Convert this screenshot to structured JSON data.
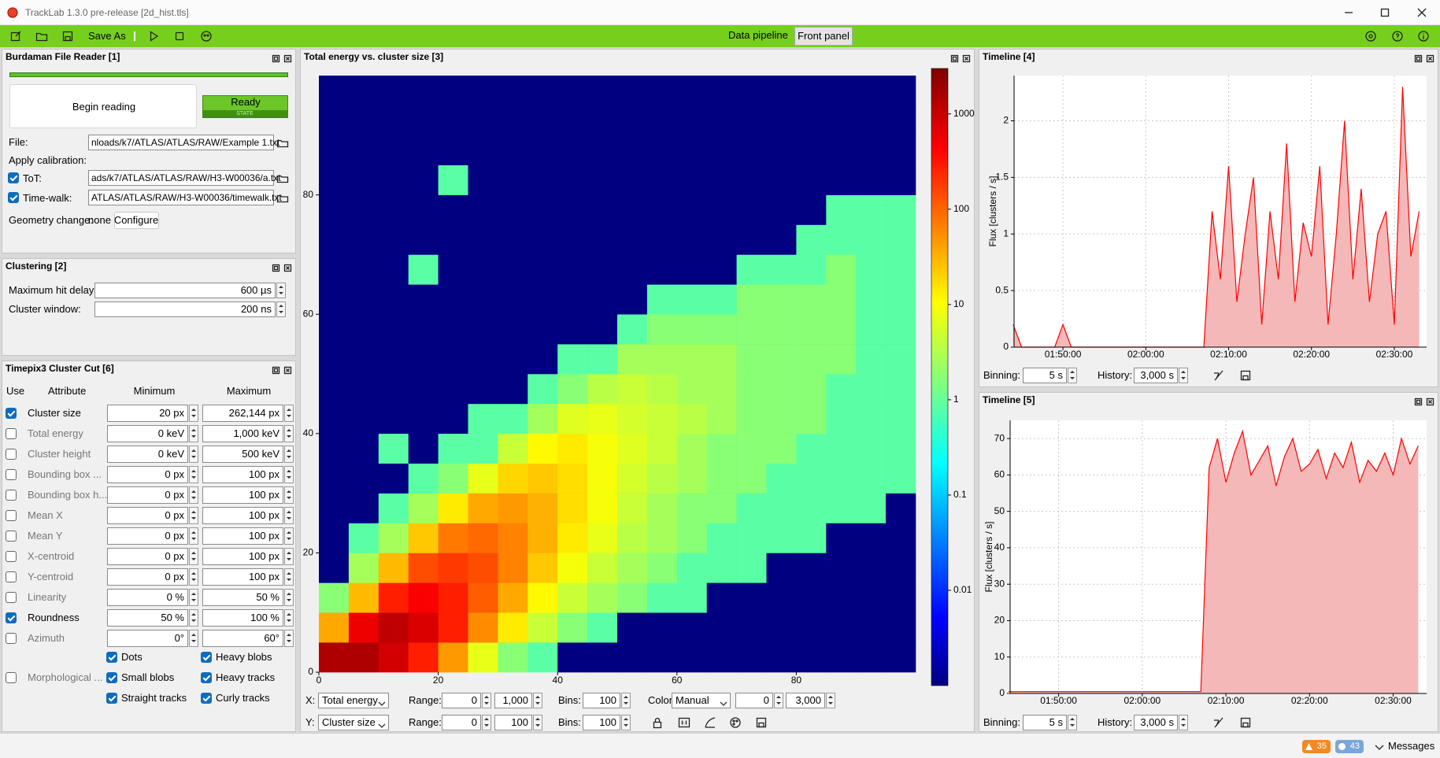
{
  "window": {
    "title": "TrackLab 1.3.0 pre-release [2d_hist.tls]"
  },
  "toolbar": {
    "save_as": "Save As",
    "tabs": [
      "Data pipeline",
      "Front panel"
    ],
    "active_tab": 1
  },
  "file_reader": {
    "title": "Burdaman File Reader [1]",
    "button": "Begin reading",
    "state": "Ready",
    "state_caption": "STATE",
    "file_label": "File:",
    "file_value": "nloads/k7/ATLAS/ATLAS/RAW/Example 1.txt",
    "apply_calibration": "Apply calibration:",
    "tot_label": "ToT:",
    "tot_checked": true,
    "tot_value": "ads/k7/ATLAS/ATLAS/RAW/H3-W00036/a.txt",
    "timewalk_label": "Time-walk:",
    "timewalk_checked": true,
    "timewalk_value": "ATLAS/ATLAS/RAW/H3-W00036/timewalk.txt",
    "geometry_label": "Geometry change:",
    "geometry_value": "none",
    "configure": "Configure"
  },
  "clustering": {
    "title": "Clustering [2]",
    "rows": [
      {
        "label": "Maximum hit delay:",
        "value": "600 µs"
      },
      {
        "label": "Cluster window:",
        "value": "200 ns"
      }
    ]
  },
  "cluster_cut": {
    "title": "Timepix3 Cluster Cut [6]",
    "headers": [
      "Use",
      "Attribute",
      "Minimum",
      "Maximum"
    ],
    "rows": [
      {
        "checked": true,
        "attribute": "Cluster size",
        "min": "20 px",
        "max": "262,144 px"
      },
      {
        "checked": false,
        "attribute": "Total energy",
        "min": "0 keV",
        "max": "1,000 keV"
      },
      {
        "checked": false,
        "attribute": "Cluster height",
        "min": "0 keV",
        "max": "500 keV"
      },
      {
        "checked": false,
        "attribute": "Bounding box ...",
        "min": "0 px",
        "max": "100 px"
      },
      {
        "checked": false,
        "attribute": "Bounding box h...",
        "min": "0 px",
        "max": "100 px"
      },
      {
        "checked": false,
        "attribute": "Mean X",
        "min": "0 px",
        "max": "100 px"
      },
      {
        "checked": false,
        "attribute": "Mean Y",
        "min": "0 px",
        "max": "100 px"
      },
      {
        "checked": false,
        "attribute": "X-centroid",
        "min": "0 px",
        "max": "100 px"
      },
      {
        "checked": false,
        "attribute": "Y-centroid",
        "min": "0 px",
        "max": "100 px"
      },
      {
        "checked": false,
        "attribute": "Linearity",
        "min": "0 %",
        "max": "50 %"
      },
      {
        "checked": true,
        "attribute": "Roundness",
        "min": "50 %",
        "max": "100 %"
      },
      {
        "checked": false,
        "attribute": "Azimuth",
        "min": "0°",
        "max": "60°"
      }
    ],
    "morphological": {
      "checked": false,
      "attribute": "Morphological ...",
      "options": [
        {
          "label": "Dots",
          "checked": true
        },
        {
          "label": "Heavy blobs",
          "checked": true
        },
        {
          "label": "Small blobs",
          "checked": true
        },
        {
          "label": "Heavy tracks",
          "checked": true
        },
        {
          "label": "Straight tracks",
          "checked": true
        },
        {
          "label": "Curly tracks",
          "checked": true
        }
      ]
    }
  },
  "chart_data": [
    {
      "type": "heatmap",
      "title": "Total energy vs. cluster size [3]",
      "x_bins": [
        0,
        5,
        10,
        15,
        20,
        25,
        30,
        35,
        40,
        45,
        50,
        55,
        60,
        65,
        70,
        75,
        80,
        85,
        90,
        95,
        100
      ],
      "y_bins": [
        0,
        5,
        10,
        15,
        20,
        25,
        30,
        35,
        40,
        45,
        50,
        55,
        60,
        65,
        70,
        75,
        80,
        85,
        90,
        95,
        100
      ],
      "z": [
        [
          1500,
          1500,
          900,
          300,
          50,
          8,
          2,
          1,
          0,
          0,
          0,
          0,
          0,
          0,
          0,
          0,
          0,
          0,
          0,
          0
        ],
        [
          40,
          600,
          1200,
          800,
          300,
          60,
          15,
          5,
          2,
          1,
          0,
          0,
          0,
          0,
          0,
          0,
          0,
          0,
          0,
          0
        ],
        [
          2,
          30,
          300,
          500,
          300,
          120,
          40,
          12,
          5,
          3,
          2,
          1,
          1,
          0,
          0,
          0,
          0,
          0,
          0,
          0
        ],
        [
          0,
          3,
          30,
          150,
          200,
          150,
          70,
          25,
          10,
          5,
          3,
          2,
          1,
          1,
          1,
          0,
          0,
          0,
          0,
          0
        ],
        [
          0,
          1,
          3,
          25,
          80,
          100,
          70,
          35,
          15,
          8,
          4,
          3,
          2,
          1,
          1,
          1,
          1,
          0,
          0,
          0
        ],
        [
          0,
          0,
          1,
          3,
          15,
          40,
          50,
          35,
          18,
          10,
          5,
          3,
          2,
          2,
          1,
          1,
          1,
          1,
          1,
          0
        ],
        [
          0,
          0,
          0,
          1,
          2,
          8,
          20,
          25,
          18,
          10,
          6,
          4,
          3,
          2,
          2,
          1,
          1,
          1,
          1,
          1
        ],
        [
          0,
          0,
          1,
          0,
          1,
          1,
          5,
          12,
          15,
          10,
          7,
          5,
          3,
          2,
          2,
          2,
          1,
          1,
          1,
          1
        ],
        [
          0,
          0,
          0,
          0,
          0,
          1,
          1,
          3,
          7,
          8,
          6,
          5,
          4,
          3,
          2,
          2,
          2,
          1,
          1,
          1
        ],
        [
          0,
          0,
          0,
          0,
          0,
          0,
          0,
          1,
          2,
          4,
          5,
          4,
          3,
          3,
          2,
          2,
          2,
          1,
          1,
          1
        ],
        [
          0,
          0,
          0,
          0,
          0,
          0,
          0,
          0,
          1,
          1,
          3,
          3,
          3,
          3,
          2,
          2,
          2,
          2,
          1,
          1
        ],
        [
          0,
          0,
          0,
          0,
          0,
          0,
          0,
          0,
          0,
          0,
          1,
          2,
          2,
          2,
          2,
          2,
          2,
          2,
          1,
          1
        ],
        [
          0,
          0,
          0,
          0,
          0,
          0,
          0,
          0,
          0,
          0,
          0,
          1,
          1,
          1,
          2,
          2,
          2,
          2,
          1,
          1
        ],
        [
          0,
          0,
          0,
          1,
          0,
          0,
          0,
          0,
          0,
          0,
          0,
          0,
          0,
          0,
          1,
          1,
          1,
          2,
          1,
          1
        ],
        [
          0,
          0,
          0,
          0,
          0,
          0,
          0,
          0,
          0,
          0,
          0,
          0,
          0,
          0,
          0,
          0,
          1,
          1,
          1,
          1
        ],
        [
          0,
          0,
          0,
          0,
          0,
          0,
          0,
          0,
          0,
          0,
          0,
          0,
          0,
          0,
          0,
          0,
          0,
          1,
          1,
          1
        ],
        [
          0,
          0,
          0,
          0,
          1,
          0,
          0,
          0,
          0,
          0,
          0,
          0,
          0,
          0,
          0,
          0,
          0,
          0,
          0,
          0
        ],
        [
          0,
          0,
          0,
          0,
          0,
          0,
          0,
          0,
          0,
          0,
          0,
          0,
          0,
          0,
          0,
          0,
          0,
          0,
          0,
          0
        ],
        [
          0,
          0,
          0,
          0,
          0,
          0,
          0,
          0,
          0,
          0,
          0,
          0,
          0,
          0,
          0,
          0,
          0,
          0,
          0,
          0
        ],
        [
          0,
          0,
          0,
          0,
          0,
          0,
          0,
          0,
          0,
          0,
          0,
          0,
          0,
          0,
          0,
          0,
          0,
          0,
          0,
          0
        ]
      ],
      "xlim": [
        0,
        100
      ],
      "ylim": [
        0,
        100
      ],
      "xticks": [
        0,
        20,
        40,
        60,
        80
      ],
      "yticks": [
        0,
        20,
        40,
        60,
        80
      ],
      "colorbar": {
        "scale": "log",
        "lim": [
          0.001,
          3000
        ],
        "ticks": [
          0.01,
          0.1,
          1,
          10,
          100,
          1000
        ],
        "colormap": "jet"
      }
    },
    {
      "type": "area",
      "title": "Timeline [4]",
      "y_label": "Flux [clusters / s]",
      "color": "#ff0000",
      "fill": "#f5b8b8",
      "x": [
        104,
        105,
        106,
        107,
        108,
        109,
        110,
        111,
        112,
        113,
        114,
        115,
        116,
        117,
        118,
        119,
        120,
        121,
        122,
        123,
        124,
        125,
        126,
        127,
        128,
        129,
        130,
        131,
        132,
        133,
        134,
        135,
        136,
        137,
        138,
        139,
        140,
        141,
        142,
        143,
        144,
        145,
        146,
        147,
        148,
        149,
        150,
        151,
        152,
        153
      ],
      "values": [
        0.2,
        0,
        0,
        0,
        0,
        0,
        0.2,
        0,
        0,
        0,
        0,
        0,
        0,
        0,
        0,
        0,
        0,
        0,
        0,
        0,
        0,
        0,
        0,
        0,
        1.2,
        0.6,
        1.6,
        0.4,
        1,
        1.5,
        0.2,
        1.2,
        0.6,
        1.8,
        0.4,
        1.1,
        0.8,
        1.6,
        0.2,
        1,
        2,
        0.6,
        1.4,
        0.4,
        1,
        1.2,
        0.2,
        2.3,
        0.8,
        1.2
      ],
      "xlim": [
        104.1,
        153.9
      ],
      "ylim": [
        0,
        2.4
      ],
      "xticks": [
        {
          "value": 110,
          "label": "01:50:00"
        },
        {
          "value": 120,
          "label": "02:00:00"
        },
        {
          "value": 130,
          "label": "02:10:00"
        },
        {
          "value": 140,
          "label": "02:20:00"
        },
        {
          "value": 150,
          "label": "02:30:00"
        }
      ],
      "yticks": [
        0,
        0.5,
        1,
        1.5,
        2
      ],
      "grid": true
    },
    {
      "type": "area",
      "title": "Timeline [5]",
      "y_label": "Flux [clusters / s]",
      "color": "#ff0000",
      "fill": "#f5b8b8",
      "x": [
        104,
        105,
        106,
        107,
        108,
        109,
        110,
        111,
        112,
        113,
        114,
        115,
        116,
        117,
        118,
        119,
        120,
        121,
        122,
        123,
        124,
        125,
        126,
        127,
        128,
        129,
        130,
        131,
        132,
        133,
        134,
        135,
        136,
        137,
        138,
        139,
        140,
        141,
        142,
        143,
        144,
        145,
        146,
        147,
        148,
        149,
        150,
        151,
        152,
        153
      ],
      "values": [
        0.5,
        0.5,
        0.5,
        0.5,
        0.5,
        0.5,
        0.5,
        0.5,
        0.5,
        0.5,
        0.5,
        0.5,
        0.5,
        0.5,
        0.5,
        0.5,
        0.5,
        0.5,
        0.5,
        0.5,
        0.5,
        0.5,
        0.5,
        0.5,
        62,
        70,
        58,
        66,
        72,
        60,
        64,
        68,
        57,
        65,
        70,
        61,
        63,
        67,
        59,
        66,
        62,
        69,
        58,
        64,
        61,
        66,
        60,
        70,
        63,
        68
      ],
      "xlim": [
        104.2,
        154
      ],
      "ylim": [
        0,
        75
      ],
      "xticks": [
        {
          "value": 110,
          "label": "01:50:00"
        },
        {
          "value": 120,
          "label": "02:00:00"
        },
        {
          "value": 130,
          "label": "02:10:00"
        },
        {
          "value": 140,
          "label": "02:20:00"
        },
        {
          "value": 150,
          "label": "02:30:00"
        }
      ],
      "yticks": [
        0,
        10,
        20,
        30,
        40,
        50,
        60,
        70
      ],
      "grid": true
    }
  ],
  "histogram_controls": {
    "x_axis": {
      "label": "X:",
      "quantity": "Total energy",
      "range_label": "Range:",
      "range": [
        "0",
        "1,000"
      ],
      "bins_label": "Bins:",
      "bins": "100"
    },
    "color": {
      "label": "Color:",
      "mode": "Manual",
      "range": [
        "0",
        "3,000"
      ]
    },
    "y_axis": {
      "label": "Y:",
      "quantity": "Cluster size",
      "range_label": "Range:",
      "range": [
        "0",
        "100"
      ],
      "bins_label": "Bins:",
      "bins": "100"
    }
  },
  "timeline_controls": [
    {
      "binning_label": "Binning:",
      "binning": "5 s",
      "history_label": "History:",
      "history": "3,000 s"
    },
    {
      "binning_label": "Binning:",
      "binning": "5 s",
      "history_label": "History:",
      "history": "3,000 s"
    }
  ],
  "status": {
    "warnings": "35",
    "infos": "43",
    "messages": "Messages"
  }
}
